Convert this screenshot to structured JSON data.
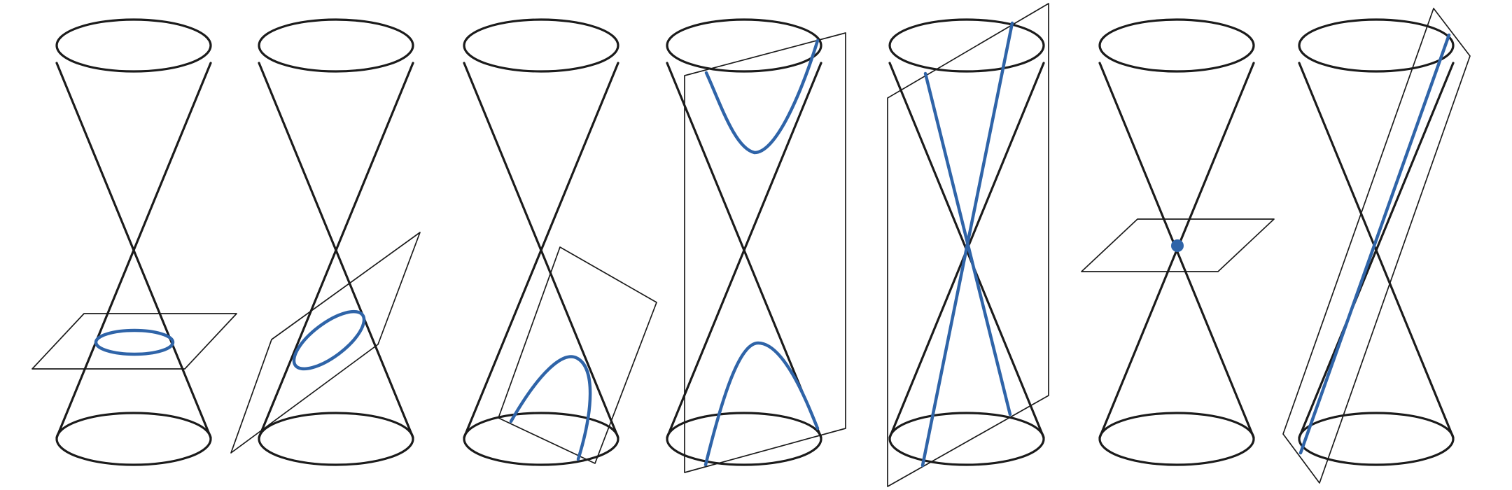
{
  "figure": {
    "panels": [
      {
        "id": "circle",
        "conic": "circle"
      },
      {
        "id": "ellipse",
        "conic": "ellipse"
      },
      {
        "id": "parabola",
        "conic": "parabola"
      },
      {
        "id": "hyperbola",
        "conic": "hyperbola"
      },
      {
        "id": "intersecting-lines",
        "conic": "two-lines"
      },
      {
        "id": "point",
        "conic": "point"
      },
      {
        "id": "line",
        "conic": "line"
      }
    ],
    "colors": {
      "cone_stroke": "#1b1b1b",
      "plane_stroke": "#1b1b1b",
      "conic_stroke": "#2f64a8"
    }
  }
}
